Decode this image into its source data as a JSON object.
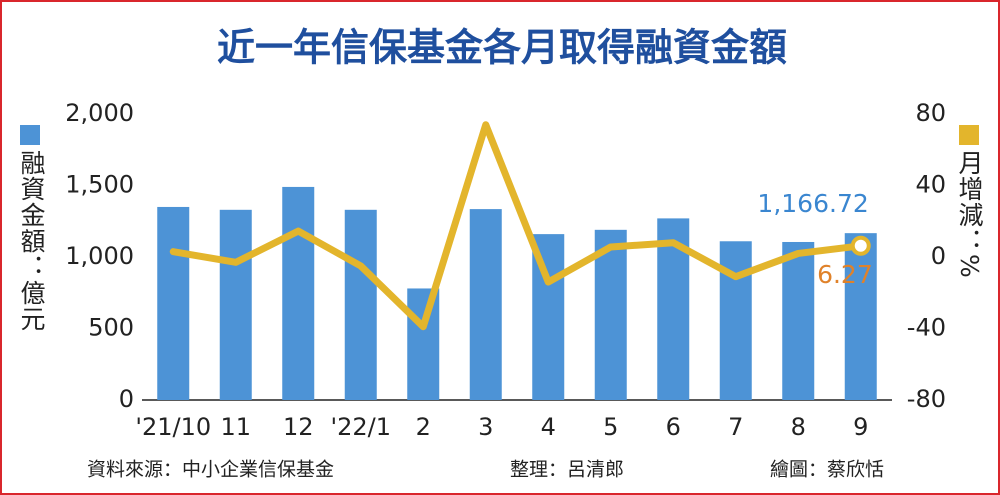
{
  "chart_data": {
    "type": "bar",
    "title": "近一年信保基金各月取得融資金額",
    "categories": [
      "'21/10",
      "11",
      "12",
      "'22/1",
      "2",
      "3",
      "4",
      "5",
      "6",
      "7",
      "8",
      "9"
    ],
    "series": [
      {
        "name": "融資金額：億元",
        "type": "bar",
        "color": "#4d93d6",
        "values": [
          1350,
          1330,
          1490,
          1330,
          780,
          1335,
          1160,
          1190,
          1270,
          1110,
          1105,
          1166.72
        ],
        "value_labels": [
          null,
          null,
          null,
          null,
          null,
          null,
          null,
          null,
          null,
          null,
          null,
          "1,166.72"
        ],
        "label_color": "#3a86d0"
      },
      {
        "name": "月增減：%",
        "type": "line",
        "axis": "y2",
        "color": "#e3b52c",
        "values": [
          3,
          -3,
          14.5,
          -5,
          -39,
          74,
          -14,
          5.6,
          8,
          -11,
          2,
          6.27
        ],
        "value_labels": [
          null,
          null,
          null,
          null,
          null,
          null,
          null,
          null,
          null,
          null,
          null,
          "6.27"
        ],
        "label_color": "#e0822a"
      }
    ],
    "ylim": [
      0,
      2000
    ],
    "yticks": [
      0,
      500,
      {
        "value": 1000,
        "label": "1,000"
      },
      {
        "value": 1500,
        "label": "1,500"
      },
      {
        "value": 2000,
        "label": "2,000"
      }
    ],
    "y2lim": [
      -80,
      80
    ],
    "y2ticks": [
      -80,
      -40,
      0,
      40,
      80
    ],
    "grid": false,
    "footer": {
      "source": "資料來源：中小企業信保基金",
      "editor": "整理：呂清郎",
      "artist": "繪圖：蔡欣恬"
    }
  }
}
